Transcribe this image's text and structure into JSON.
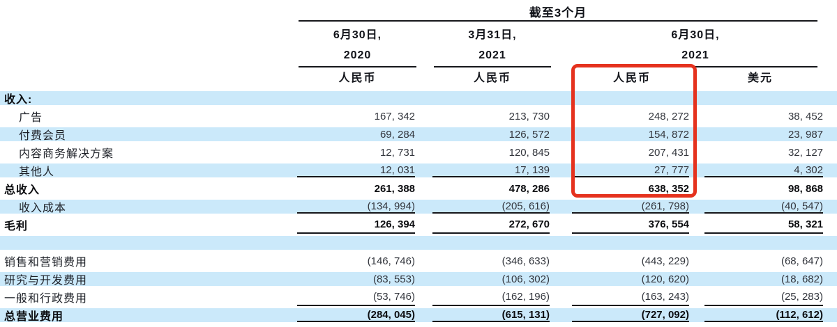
{
  "header": {
    "period_label": "截至3个月",
    "groups": [
      {
        "date": "6月30日,",
        "year": "2020"
      },
      {
        "date": "3月31日,",
        "year": "2021"
      },
      {
        "date": "6月30日,",
        "year": "2021"
      }
    ],
    "currency_labels": [
      "人民币",
      "人民币",
      "人民币",
      "美元"
    ]
  },
  "rows": [
    {
      "label": "收入:",
      "bold": true,
      "indent": false,
      "stripe": true,
      "rule_below": false,
      "values": [
        "",
        "",
        "",
        ""
      ]
    },
    {
      "label": "广告",
      "bold": false,
      "indent": true,
      "stripe": false,
      "rule_below": false,
      "values": [
        "167, 342",
        "213, 730",
        "248, 272",
        "38, 452"
      ]
    },
    {
      "label": "付费会员",
      "bold": false,
      "indent": true,
      "stripe": true,
      "rule_below": false,
      "values": [
        "69, 284",
        "126, 572",
        "154, 872",
        "23, 987"
      ]
    },
    {
      "label": "内容商务解决方案",
      "bold": false,
      "indent": true,
      "stripe": false,
      "rule_below": false,
      "values": [
        "12, 731",
        "120, 845",
        "207, 431",
        "32, 127"
      ]
    },
    {
      "label": "其他人",
      "bold": false,
      "indent": true,
      "stripe": true,
      "rule_below": true,
      "values": [
        "12, 031",
        "17, 139",
        "27, 777",
        "4, 302"
      ]
    },
    {
      "label": "总收入",
      "bold": true,
      "indent": false,
      "stripe": false,
      "rule_below": false,
      "values": [
        "261, 388",
        "478, 286",
        "638, 352",
        "98, 868"
      ]
    },
    {
      "label": "收入成本",
      "bold": false,
      "indent": true,
      "stripe": true,
      "rule_below": true,
      "values": [
        "(134, 994)",
        "(205, 616)",
        "(261, 798)",
        "(40, 547)"
      ]
    },
    {
      "label": "毛利",
      "bold": true,
      "indent": false,
      "stripe": false,
      "rule_below": true,
      "values": [
        "126, 394",
        "272, 670",
        "376, 554",
        "58, 321"
      ]
    },
    {
      "label": "",
      "bold": false,
      "indent": false,
      "stripe": true,
      "rule_below": false,
      "spacer": true,
      "values": [
        "",
        "",
        "",
        ""
      ]
    },
    {
      "label": "销售和营销费用",
      "bold": false,
      "indent": false,
      "stripe": false,
      "rule_below": false,
      "values": [
        "(146, 746)",
        "(346, 633)",
        "(443, 229)",
        "(68, 647)"
      ]
    },
    {
      "label": "研究与开发费用",
      "bold": false,
      "indent": false,
      "stripe": true,
      "rule_below": false,
      "values": [
        "(83, 553)",
        "(106, 302)",
        "(120, 620)",
        "(18, 682)"
      ]
    },
    {
      "label": "一般和行政费用",
      "bold": false,
      "indent": false,
      "stripe": false,
      "rule_below": true,
      "values": [
        "(53, 746)",
        "(162, 196)",
        "(163, 243)",
        "(25, 283)"
      ]
    },
    {
      "label": "总营业费用",
      "bold": true,
      "indent": false,
      "stripe": true,
      "rule_below": true,
      "values": [
        "(284, 045)",
        "(615, 131)",
        "(727, 092)",
        "(112, 612)"
      ]
    }
  ],
  "highlight_box": {
    "target_column": "6月30日, 2021 人民币",
    "color": "#e5321e"
  },
  "colors": {
    "stripe_blue": "#cbe9fa",
    "rule_black": "#15161a",
    "highlight_red": "#e5321e"
  }
}
